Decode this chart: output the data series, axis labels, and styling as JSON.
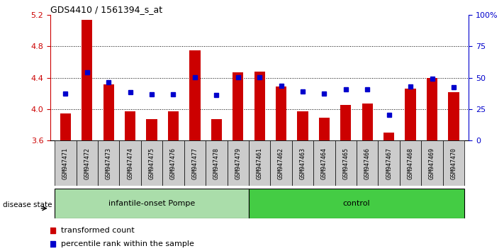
{
  "title": "GDS4410 / 1561394_s_at",
  "samples": [
    "GSM947471",
    "GSM947472",
    "GSM947473",
    "GSM947474",
    "GSM947475",
    "GSM947476",
    "GSM947477",
    "GSM947478",
    "GSM947479",
    "GSM947461",
    "GSM947462",
    "GSM947463",
    "GSM947464",
    "GSM947465",
    "GSM947466",
    "GSM947467",
    "GSM947468",
    "GSM947469",
    "GSM947470"
  ],
  "red_values": [
    3.95,
    5.14,
    4.32,
    3.97,
    3.87,
    3.97,
    4.75,
    3.87,
    4.47,
    4.48,
    4.29,
    3.97,
    3.89,
    4.05,
    4.07,
    3.7,
    4.26,
    4.4,
    4.22
  ],
  "blue_values": [
    4.2,
    4.47,
    4.34,
    4.22,
    4.19,
    4.19,
    4.41,
    4.18,
    4.41,
    4.41,
    4.3,
    4.23,
    4.2,
    4.25,
    4.25,
    3.93,
    4.29,
    4.39,
    4.28
  ],
  "group1_label": "infantile-onset Pompe",
  "group1_count": 9,
  "group2_label": "control",
  "group2_count": 10,
  "group_label": "disease state",
  "ylim_left": [
    3.6,
    5.2
  ],
  "ylim_right": [
    0,
    100
  ],
  "yticks_left": [
    3.6,
    4.0,
    4.4,
    4.8,
    5.2
  ],
  "yticks_right": [
    0,
    25,
    50,
    75,
    100
  ],
  "ytick_labels_right": [
    "0",
    "25",
    "50",
    "75",
    "100%"
  ],
  "bar_color": "#CC0000",
  "dot_color": "#0000CC",
  "group1_color": "#AADDAA",
  "group2_color": "#44CC44",
  "tick_label_color_left": "#CC0000",
  "tick_label_color_right": "#0000CC",
  "legend_red_label": "transformed count",
  "legend_blue_label": "percentile rank within the sample",
  "bar_width": 0.5,
  "baseline": 3.6
}
